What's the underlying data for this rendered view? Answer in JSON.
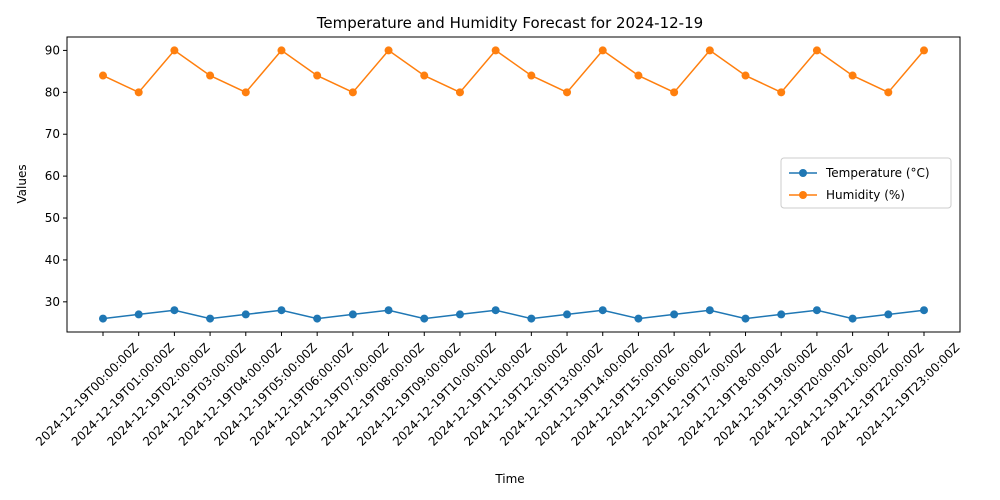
{
  "chart_data": {
    "type": "line",
    "title": "Temperature and Humidity Forecast for 2024-12-19",
    "xlabel": "Time",
    "ylabel": "Values",
    "x": [
      "2024-12-19T00:00:00Z",
      "2024-12-19T01:00:00Z",
      "2024-12-19T02:00:00Z",
      "2024-12-19T03:00:00Z",
      "2024-12-19T04:00:00Z",
      "2024-12-19T05:00:00Z",
      "2024-12-19T06:00:00Z",
      "2024-12-19T07:00:00Z",
      "2024-12-19T08:00:00Z",
      "2024-12-19T09:00:00Z",
      "2024-12-19T10:00:00Z",
      "2024-12-19T11:00:00Z",
      "2024-12-19T12:00:00Z",
      "2024-12-19T13:00:00Z",
      "2024-12-19T14:00:00Z",
      "2024-12-19T15:00:00Z",
      "2024-12-19T16:00:00Z",
      "2024-12-19T17:00:00Z",
      "2024-12-19T18:00:00Z",
      "2024-12-19T19:00:00Z",
      "2024-12-19T20:00:00Z",
      "2024-12-19T21:00:00Z",
      "2024-12-19T22:00:00Z",
      "2024-12-19T23:00:00Z"
    ],
    "series": [
      {
        "name": "Temperature (°C)",
        "color": "#1f77b4",
        "values": [
          26,
          27,
          28,
          26,
          27,
          28,
          26,
          27,
          28,
          26,
          27,
          28,
          26,
          27,
          28,
          26,
          27,
          28,
          26,
          27,
          28,
          26,
          27,
          28
        ]
      },
      {
        "name": "Humidity (%)",
        "color": "#ff7f0e",
        "values": [
          84,
          80,
          90,
          84,
          80,
          90,
          84,
          80,
          90,
          84,
          80,
          90,
          84,
          80,
          90,
          84,
          80,
          90,
          84,
          80,
          90,
          84,
          80,
          90
        ]
      }
    ],
    "ylim": [
      22.8,
      93.2
    ],
    "yticks": [
      30,
      40,
      50,
      60,
      70,
      80,
      90
    ],
    "grid": false,
    "legend_position": "center-right",
    "markers": "circle"
  }
}
